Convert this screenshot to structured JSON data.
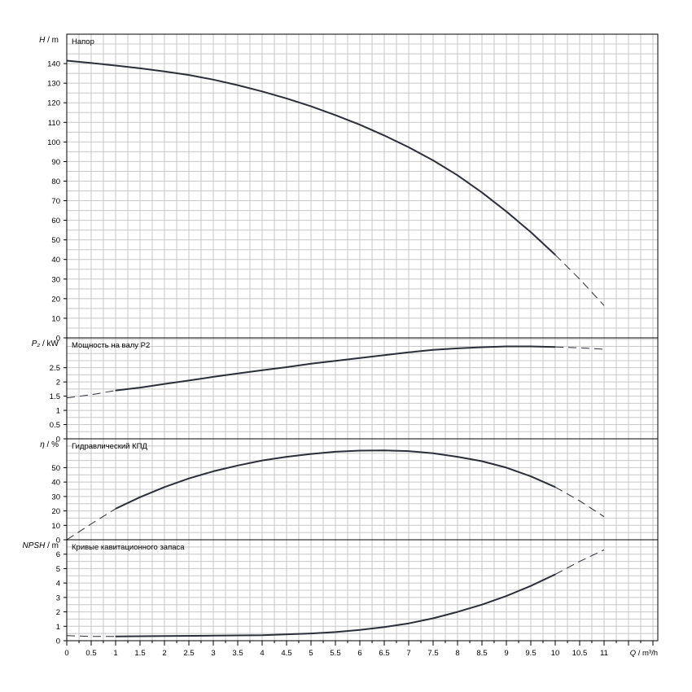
{
  "chart_data": [
    {
      "type": "line",
      "panel_label": "Напор",
      "ylabel": {
        "sym": "H",
        "unit": " / m"
      },
      "ylim": [
        0,
        155
      ],
      "yticks": [
        0,
        10,
        20,
        30,
        40,
        50,
        60,
        70,
        80,
        90,
        100,
        110,
        120,
        130,
        140
      ],
      "series": [
        {
          "solid": [
            [
              0,
              141.5
            ],
            [
              0.5,
              140.3
            ],
            [
              1,
              139
            ],
            [
              1.5,
              137.6
            ],
            [
              2,
              136
            ],
            [
              2.5,
              134.2
            ],
            [
              3,
              131.8
            ],
            [
              3.5,
              129
            ],
            [
              4,
              125.8
            ],
            [
              4.5,
              122.2
            ],
            [
              5,
              118.2
            ],
            [
              5.5,
              113.7
            ],
            [
              6,
              108.8
            ],
            [
              6.5,
              103.3
            ],
            [
              7,
              97.3
            ],
            [
              7.5,
              90.6
            ],
            [
              8,
              83
            ],
            [
              8.5,
              74.2
            ],
            [
              9,
              64.5
            ],
            [
              9.5,
              54
            ],
            [
              10,
              42.4
            ]
          ],
          "dashed": [
            [
              10,
              42.4
            ],
            [
              10.5,
              30
            ],
            [
              11,
              16.5
            ]
          ]
        }
      ]
    },
    {
      "type": "line",
      "panel_label": "Мощность на валу P2",
      "ylabel": {
        "sym": "P₂",
        "unit": " / kW"
      },
      "ylim": [
        0,
        3.55
      ],
      "yticks": [
        0,
        0.5,
        1,
        1.5,
        2,
        2.5
      ],
      "series": [
        {
          "solid": [
            [
              1,
              1.7
            ],
            [
              1.5,
              1.8
            ],
            [
              2,
              1.93
            ],
            [
              2.5,
              2.05
            ],
            [
              3,
              2.18
            ],
            [
              3.5,
              2.3
            ],
            [
              4,
              2.41
            ],
            [
              4.5,
              2.52
            ],
            [
              5,
              2.64
            ],
            [
              5.5,
              2.74
            ],
            [
              6,
              2.84
            ],
            [
              6.5,
              2.94
            ],
            [
              7,
              3.04
            ],
            [
              7.5,
              3.13
            ],
            [
              8,
              3.18
            ],
            [
              8.5,
              3.22
            ],
            [
              9,
              3.25
            ],
            [
              9.5,
              3.25
            ],
            [
              10,
              3.23
            ]
          ],
          "dashed_before": [
            [
              0,
              1.44
            ],
            [
              0.5,
              1.55
            ],
            [
              1,
              1.7
            ]
          ],
          "dashed": [
            [
              10,
              3.23
            ],
            [
              10.5,
              3.2
            ],
            [
              11,
              3.15
            ]
          ]
        }
      ]
    },
    {
      "type": "line",
      "panel_label": "Гидравлический КПД",
      "ylabel": {
        "sym": "η",
        "unit": " / %"
      },
      "ylim": [
        0,
        70
      ],
      "yticks": [
        0,
        10,
        20,
        30,
        40,
        50
      ],
      "series": [
        {
          "solid": [
            [
              1,
              21.5
            ],
            [
              1.5,
              29.5
            ],
            [
              2,
              36.5
            ],
            [
              2.5,
              42.5
            ],
            [
              3,
              47.5
            ],
            [
              3.5,
              51.5
            ],
            [
              4,
              55
            ],
            [
              4.5,
              57.5
            ],
            [
              5,
              59.5
            ],
            [
              5.5,
              61
            ],
            [
              6,
              61.8
            ],
            [
              6.5,
              62
            ],
            [
              7,
              61.5
            ],
            [
              7.5,
              60
            ],
            [
              8,
              57.5
            ],
            [
              8.5,
              54.5
            ],
            [
              9,
              50
            ],
            [
              9.5,
              44
            ],
            [
              10,
              36.5
            ]
          ],
          "dashed_before": [
            [
              0,
              0
            ],
            [
              0.5,
              11
            ],
            [
              1,
              21.5
            ]
          ],
          "dashed": [
            [
              10,
              36.5
            ],
            [
              10.5,
              27
            ],
            [
              11,
              16
            ]
          ]
        }
      ]
    },
    {
      "type": "line",
      "panel_label": "Кривые кавитационного запаса",
      "ylabel": {
        "sym": "NPSH",
        "unit": " / m"
      },
      "ylim": [
        0,
        7
      ],
      "yticks": [
        0,
        1,
        2,
        3,
        4,
        5,
        6
      ],
      "series": [
        {
          "solid": [
            [
              1,
              0.3
            ],
            [
              2,
              0.32
            ],
            [
              3,
              0.35
            ],
            [
              4,
              0.38
            ],
            [
              5,
              0.5
            ],
            [
              5.5,
              0.6
            ],
            [
              6,
              0.75
            ],
            [
              6.5,
              0.95
            ],
            [
              7,
              1.2
            ],
            [
              7.5,
              1.55
            ],
            [
              8,
              2
            ],
            [
              8.5,
              2.5
            ],
            [
              9,
              3.1
            ],
            [
              9.5,
              3.8
            ],
            [
              10,
              4.6
            ]
          ],
          "dashed_before": [
            [
              0,
              0.35
            ],
            [
              0.5,
              0.3
            ],
            [
              1,
              0.3
            ]
          ],
          "dashed": [
            [
              10,
              4.6
            ],
            [
              10.5,
              5.5
            ],
            [
              11,
              6.3
            ]
          ]
        }
      ]
    }
  ],
  "x_axis": {
    "label": "Q / m³/h",
    "xlim": [
      0,
      12.1
    ],
    "ticks": [
      "0",
      "0.5",
      "1",
      "1.5",
      "2",
      "2.5",
      "3",
      "3.5",
      "4",
      "4.5",
      "5",
      "5.5",
      "6",
      "6.5",
      "7",
      "7.5",
      "8",
      "8.5",
      "9",
      "9.5",
      "10",
      "10.5",
      "11"
    ],
    "tick_values": [
      0,
      0.5,
      1,
      1.5,
      2,
      2.5,
      3,
      3.5,
      4,
      4.5,
      5,
      5.5,
      6,
      6.5,
      7,
      7.5,
      8,
      8.5,
      9,
      9.5,
      10,
      10.5,
      11
    ],
    "grid_step": 0.25,
    "grid": true
  },
  "colors": {
    "grid": "#c8c8c8",
    "curve": "#2b2f3a",
    "frame": "#000000"
  }
}
